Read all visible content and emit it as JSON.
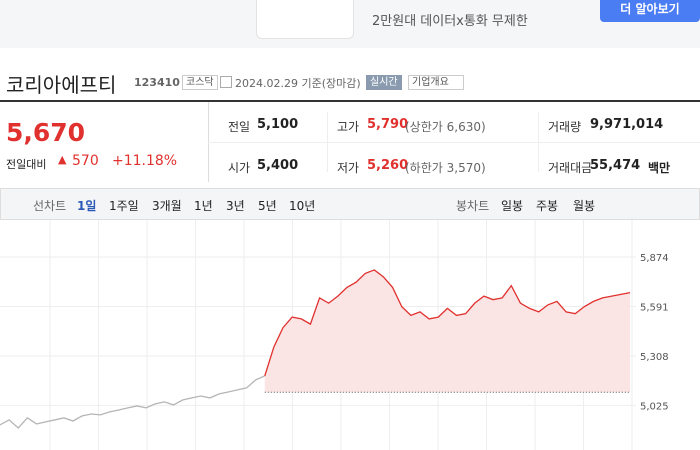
{
  "ad": {
    "text": "2만원대 데이터x통화 무제한",
    "button": "더 알아보기"
  },
  "header": {
    "name": "코리아에프티",
    "code": "123410",
    "market": "코스닥",
    "date": "2024.02.29 기준(장마감)",
    "realtime": "실시간",
    "overview": "기업개요"
  },
  "price": {
    "current": "5,670",
    "change_label": "전일대비",
    "change": "570",
    "change_pct": "+11.18%"
  },
  "stats": [
    [
      {
        "label": "전일",
        "value": "5,100"
      },
      {
        "label": "고가",
        "value": "5,790",
        "note": "(상한가 6,630)"
      },
      {
        "label": "거래량",
        "value": "9,971,014"
      }
    ],
    [
      {
        "label": "시가",
        "value": "5,400"
      },
      {
        "label": "저가",
        "value": "5,260",
        "note": "(하한가 3,570)"
      },
      {
        "label": "거래대금",
        "value": "55,474",
        "unit": "백만"
      }
    ]
  ],
  "tabs": {
    "line_label": "선차트",
    "line": [
      "1일",
      "1주일",
      "3개월",
      "1년",
      "3년",
      "5년",
      "10년"
    ],
    "candle_label": "봉차트",
    "candle": [
      "일봉",
      "주봉",
      "월봉"
    ]
  },
  "chart_data": {
    "type": "line",
    "ylim": [
      4770,
      6057
    ],
    "yticks": [
      {
        "value": 5874,
        "label": "5,874"
      },
      {
        "value": 5591,
        "label": "5,591"
      },
      {
        "value": 5308,
        "label": "5,308"
      },
      {
        "value": 5025,
        "label": "5,025"
      }
    ],
    "baseline": 5100,
    "grid": true,
    "series": [
      {
        "color": "#b5b5b5",
        "values": [
          4914,
          4942,
          4896,
          4954,
          4919,
          4931,
          4942,
          4954,
          4936,
          4965,
          4976,
          4971,
          4988,
          4999,
          5011,
          5022,
          5011,
          5034,
          5045,
          5028,
          5056,
          5068,
          5079,
          5068,
          5091,
          5102,
          5114,
          5125,
          5171,
          5194,
          null,
          null,
          null,
          null,
          null,
          null,
          null,
          null,
          null,
          null,
          null,
          null,
          null,
          null,
          null,
          null,
          null,
          null,
          null,
          null,
          null,
          null,
          null,
          null,
          null,
          null,
          null,
          null,
          null,
          null,
          null,
          null,
          null,
          null,
          null,
          null,
          null,
          null,
          null,
          null
        ]
      },
      {
        "color": "#e0312e",
        "fill": "#fbe4e4",
        "values": [
          null,
          null,
          null,
          null,
          null,
          null,
          null,
          null,
          null,
          null,
          null,
          null,
          null,
          null,
          null,
          null,
          null,
          null,
          null,
          null,
          null,
          null,
          null,
          null,
          null,
          null,
          null,
          null,
          null,
          5194,
          5360,
          5470,
          5530,
          5520,
          5490,
          5640,
          5610,
          5650,
          5700,
          5730,
          5780,
          5800,
          5760,
          5700,
          5590,
          5540,
          5560,
          5520,
          5530,
          5580,
          5540,
          5550,
          5610,
          5650,
          5630,
          5640,
          5710,
          5610,
          5580,
          5560,
          5600,
          5620,
          5560,
          5550,
          5590,
          5620,
          5640,
          5650,
          5660,
          5670
        ]
      }
    ]
  }
}
